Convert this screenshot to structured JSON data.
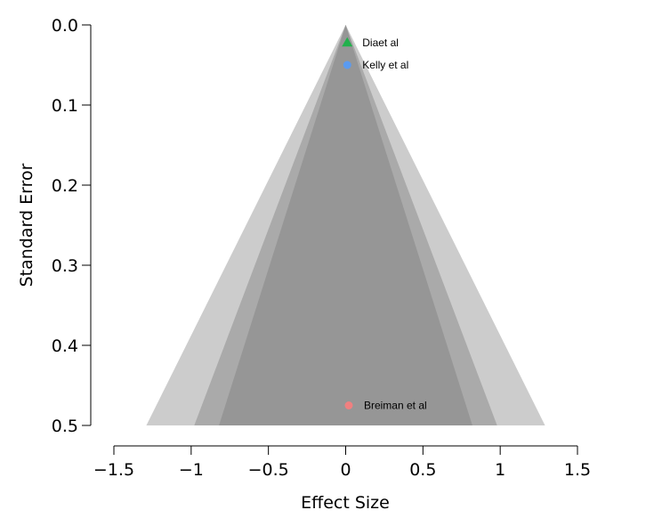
{
  "chart_data": {
    "type": "scatter",
    "subtype": "funnel",
    "xlabel": "Effect Size",
    "ylabel": "Standard Error",
    "xlim": [
      -1.5,
      1.5
    ],
    "ylim": [
      0.5,
      0.0
    ],
    "y_reversed": true,
    "x_ticks": [
      -1.5,
      -1,
      -0.5,
      0,
      0.5,
      1,
      1.5
    ],
    "x_tick_labels": [
      "−1.5",
      "−1",
      "−0.5",
      "0",
      "0.5",
      "1",
      "1.5"
    ],
    "y_ticks": [
      0.0,
      0.1,
      0.2,
      0.3,
      0.4,
      0.5
    ],
    "y_tick_labels": [
      "0.0",
      "0.1",
      "0.2",
      "0.3",
      "0.4",
      "0.5"
    ],
    "grid": false,
    "funnel_center": 0,
    "funnel_regions": [
      {
        "half_width_at_max_se": 1.29,
        "color": "#cccccc"
      },
      {
        "half_width_at_max_se": 0.98,
        "color": "#aaaaaa"
      },
      {
        "half_width_at_max_se": 0.82,
        "color": "#969696"
      }
    ],
    "points": [
      {
        "label": "Diaet al",
        "x": 0.01,
        "y": 0.022,
        "marker": "triangle",
        "color": "#22b14c"
      },
      {
        "label": "Kelly et al",
        "x": 0.01,
        "y": 0.05,
        "marker": "circle",
        "color": "#5b9bf0"
      },
      {
        "label": "Breiman et al",
        "x": 0.02,
        "y": 0.475,
        "marker": "circle",
        "color": "#f08080"
      }
    ]
  }
}
